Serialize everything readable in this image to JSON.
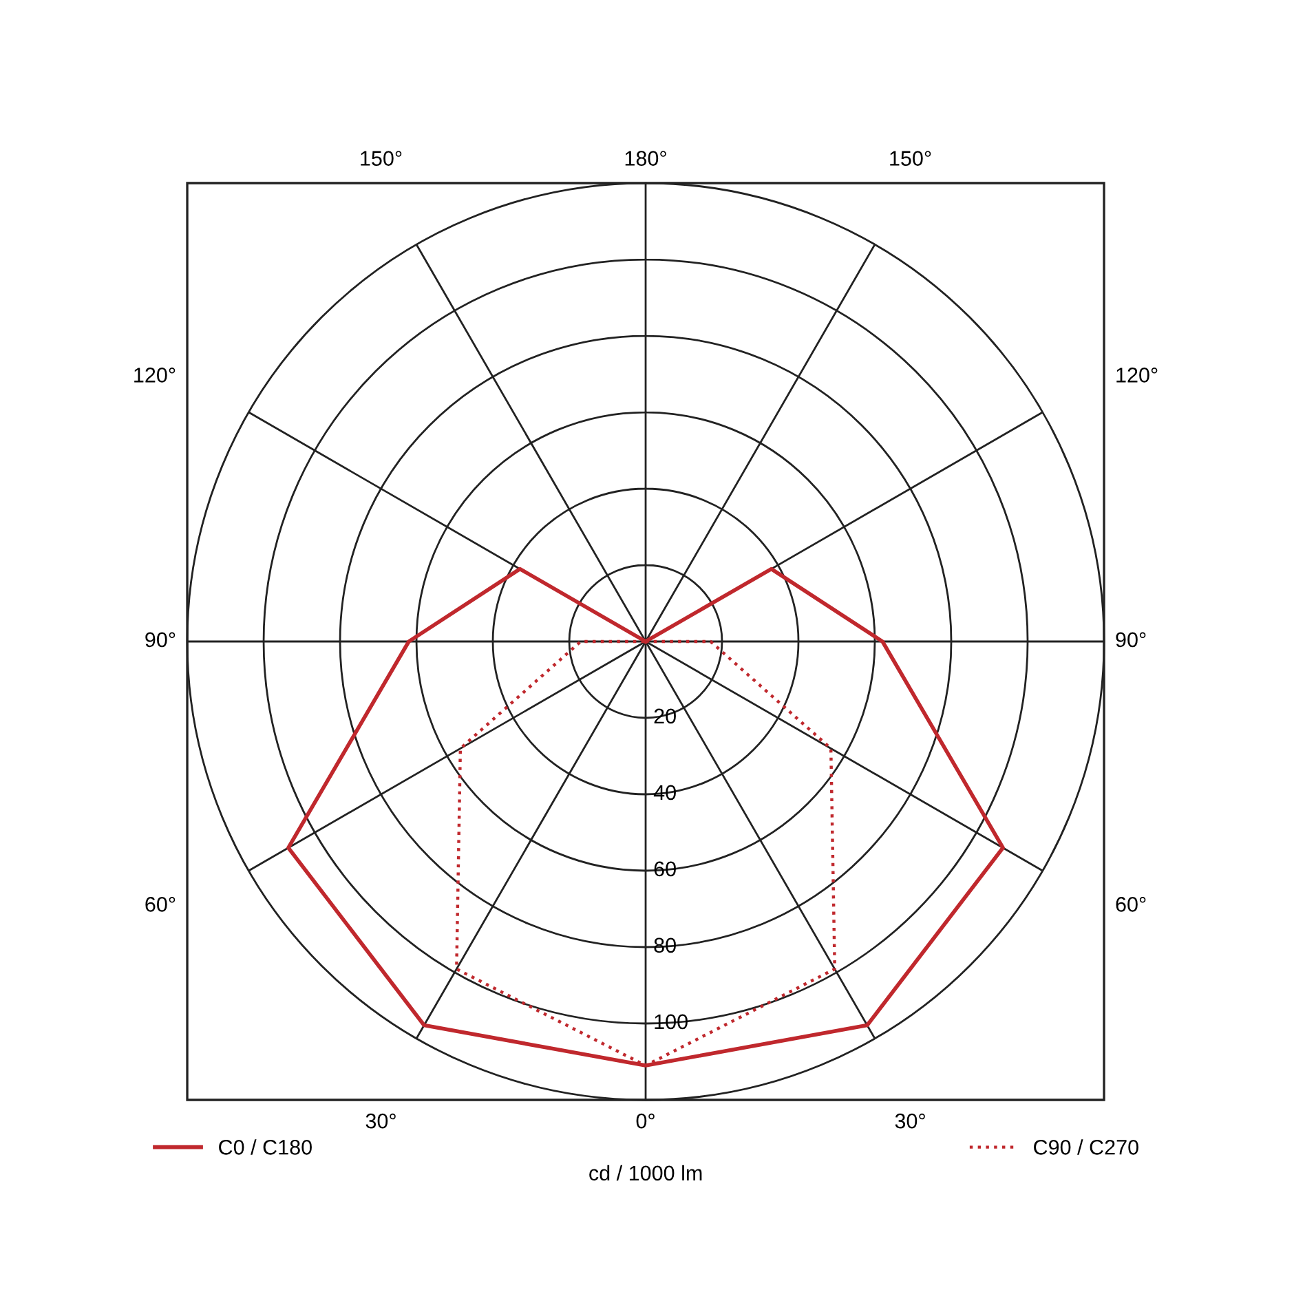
{
  "chart_data": {
    "type": "radar",
    "xlabel": "cd / 1000 lm",
    "categories": [
      "180°",
      "150°",
      "120°",
      "90°",
      "60°",
      "30°",
      "0°",
      "30°",
      "60°",
      "90°",
      "120°",
      "150°"
    ],
    "ylim": [
      0,
      120
    ],
    "yticks": [
      20,
      40,
      60,
      80,
      100
    ],
    "grid": true,
    "legend": "bottom",
    "series": [
      {
        "name": "C0 / C180",
        "color": "#c0282d",
        "line_style": "solid",
        "values": [
          0,
          0,
          38,
          62,
          108,
          116,
          111,
          116,
          108,
          62,
          38,
          0
        ]
      },
      {
        "name": "C90 / C270",
        "color": "#c0282d",
        "line_style": "dotted",
        "values": [
          0,
          0,
          0,
          17,
          56,
          99,
          111,
          99,
          56,
          17,
          0,
          0
        ]
      }
    ]
  }
}
